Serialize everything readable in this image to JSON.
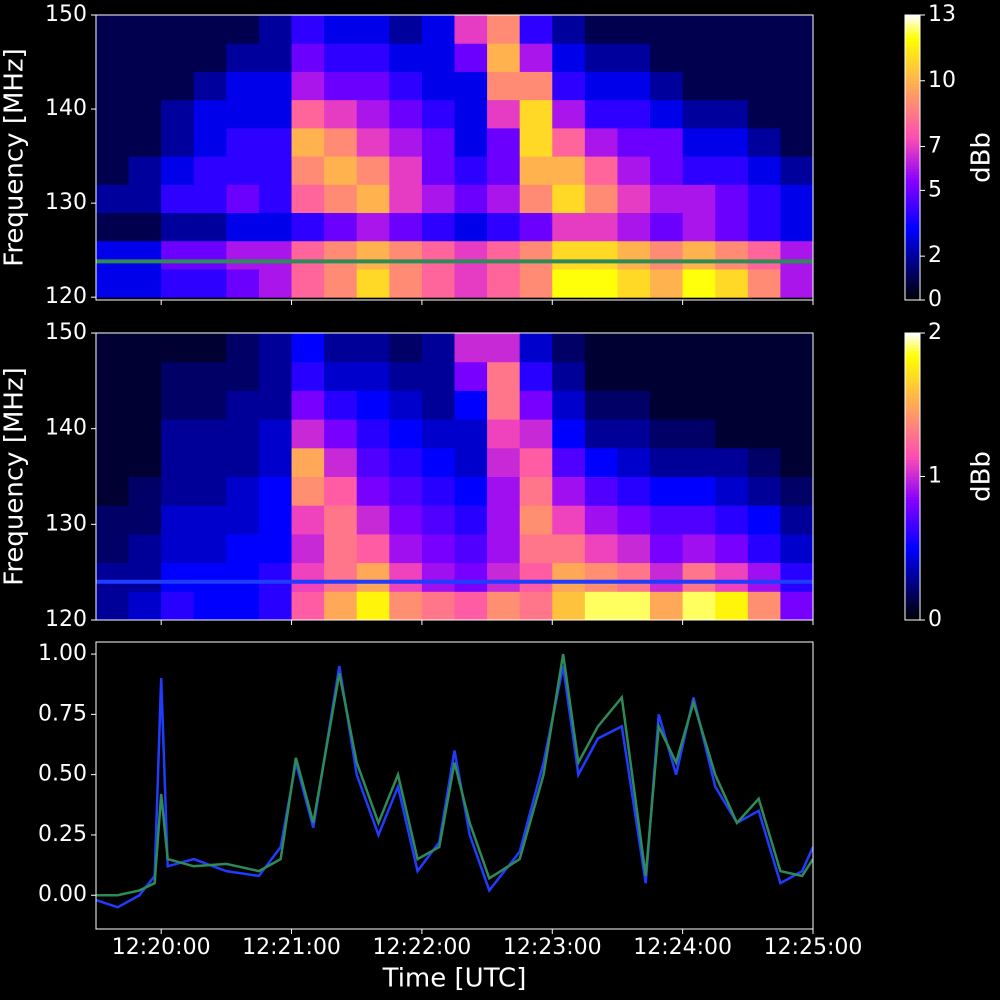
{
  "chart_data": [
    {
      "type": "heatmap",
      "ylabel": "Frequency [MHz]",
      "colorbar_label": "dBb",
      "colormap": "gnuplot2",
      "xlim": [
        "12:19:30",
        "12:25:00"
      ],
      "ylim": [
        119.7,
        150
      ],
      "yticks": [
        120,
        130,
        140,
        150
      ],
      "zlim": [
        0,
        13
      ],
      "zticks": [
        0,
        2,
        5,
        7,
        10,
        13
      ],
      "x": [
        "12:19:30",
        "12:19:45",
        "12:20:00",
        "12:20:15",
        "12:20:30",
        "12:20:45",
        "12:21:00",
        "12:21:15",
        "12:21:30",
        "12:21:45",
        "12:22:00",
        "12:22:15",
        "12:22:30",
        "12:22:45",
        "12:23:00",
        "12:23:15",
        "12:23:30",
        "12:23:45",
        "12:24:00",
        "12:24:15",
        "12:24:30",
        "12:24:45"
      ],
      "y": [
        120,
        123,
        126,
        129,
        132,
        135,
        138,
        141,
        144,
        147
      ],
      "z": [
        [
          3,
          3,
          4,
          4,
          5,
          6,
          8,
          9,
          11,
          9,
          8,
          7,
          8,
          9,
          12,
          12,
          11,
          10,
          12,
          11,
          9,
          6
        ],
        [
          3,
          3,
          5,
          5,
          6,
          6,
          8,
          9,
          10,
          9,
          8,
          7,
          8,
          9,
          11,
          11,
          10,
          9,
          10,
          9,
          8,
          6
        ],
        [
          1,
          1,
          2,
          2,
          3,
          3,
          4,
          5,
          6,
          5,
          4,
          3,
          4,
          5,
          7,
          7,
          6,
          5,
          6,
          5,
          4,
          3
        ],
        [
          2,
          2,
          4,
          4,
          5,
          4,
          8,
          9,
          10,
          7,
          6,
          5,
          6,
          9,
          11,
          9,
          7,
          6,
          6,
          5,
          4,
          3
        ],
        [
          1,
          2,
          3,
          4,
          4,
          4,
          9,
          10,
          9,
          7,
          5,
          4,
          5,
          10,
          10,
          8,
          6,
          5,
          4,
          4,
          3,
          2
        ],
        [
          1,
          1,
          2,
          3,
          4,
          4,
          10,
          9,
          7,
          6,
          5,
          3,
          5,
          11,
          8,
          6,
          5,
          5,
          3,
          3,
          2,
          1
        ],
        [
          1,
          1,
          2,
          3,
          3,
          3,
          8,
          7,
          6,
          5,
          4,
          3,
          7,
          11,
          6,
          4,
          4,
          3,
          2,
          2,
          1,
          1
        ],
        [
          1,
          1,
          1,
          2,
          3,
          3,
          6,
          5,
          5,
          4,
          3,
          3,
          9,
          9,
          4,
          3,
          3,
          2,
          1,
          1,
          1,
          1
        ],
        [
          1,
          1,
          1,
          1,
          2,
          2,
          5,
          4,
          4,
          3,
          3,
          5,
          10,
          6,
          3,
          2,
          2,
          1,
          1,
          1,
          1,
          1
        ],
        [
          1,
          1,
          1,
          1,
          1,
          2,
          4,
          3,
          3,
          2,
          3,
          7,
          9,
          4,
          2,
          1,
          1,
          1,
          1,
          1,
          1,
          1
        ]
      ],
      "hlines": [
        {
          "value": 123.8,
          "color": "#2e8b57"
        }
      ]
    },
    {
      "type": "heatmap",
      "ylabel": "Frequency [MHz]",
      "colorbar_label": "dBb",
      "colormap": "gnuplot2",
      "xlim": [
        "12:19:30",
        "12:25:00"
      ],
      "ylim": [
        120,
        150
      ],
      "yticks": [
        120,
        130,
        140,
        150
      ],
      "zlim": [
        0,
        2
      ],
      "zticks": [
        0,
        1,
        2
      ],
      "x": [
        "12:19:30",
        "12:19:45",
        "12:20:00",
        "12:20:15",
        "12:20:30",
        "12:20:45",
        "12:21:00",
        "12:21:15",
        "12:21:30",
        "12:21:45",
        "12:22:00",
        "12:22:15",
        "12:22:30",
        "12:22:45",
        "12:23:00",
        "12:23:15",
        "12:23:30",
        "12:23:45",
        "12:24:00",
        "12:24:15",
        "12:24:30",
        "12:24:45"
      ],
      "y": [
        120,
        123,
        126,
        129,
        132,
        135,
        138,
        141,
        144,
        147
      ],
      "z": [
        [
          0.3,
          0.4,
          0.6,
          0.5,
          0.5,
          0.6,
          1.2,
          1.5,
          1.8,
          1.4,
          1.3,
          1.2,
          1.4,
          1.3,
          1.6,
          1.9,
          1.9,
          1.5,
          1.9,
          1.8,
          1.4,
          0.8
        ],
        [
          0.3,
          0.3,
          0.5,
          0.5,
          0.5,
          0.6,
          1.1,
          1.3,
          1.5,
          1.1,
          0.9,
          0.8,
          1.0,
          1.2,
          1.5,
          1.4,
          1.3,
          1.0,
          1.3,
          1.1,
          0.9,
          0.6
        ],
        [
          0.2,
          0.3,
          0.4,
          0.4,
          0.5,
          0.5,
          1.0,
          1.3,
          1.2,
          0.9,
          0.8,
          0.7,
          0.9,
          1.3,
          1.3,
          1.1,
          1.0,
          0.8,
          0.9,
          0.8,
          0.6,
          0.4
        ],
        [
          0.2,
          0.2,
          0.4,
          0.4,
          0.4,
          0.5,
          1.1,
          1.3,
          1.0,
          0.8,
          0.7,
          0.6,
          0.9,
          1.4,
          1.1,
          0.9,
          0.8,
          0.7,
          0.7,
          0.6,
          0.5,
          0.3
        ],
        [
          0.1,
          0.2,
          0.3,
          0.3,
          0.4,
          0.5,
          1.4,
          1.2,
          0.8,
          0.7,
          0.6,
          0.5,
          0.9,
          1.3,
          0.9,
          0.7,
          0.6,
          0.5,
          0.5,
          0.4,
          0.3,
          0.2
        ],
        [
          0.1,
          0.1,
          0.3,
          0.3,
          0.3,
          0.4,
          1.5,
          1.0,
          0.7,
          0.6,
          0.5,
          0.4,
          1.0,
          1.2,
          0.7,
          0.5,
          0.4,
          0.3,
          0.3,
          0.3,
          0.2,
          0.1
        ],
        [
          0.1,
          0.1,
          0.3,
          0.3,
          0.3,
          0.4,
          1.0,
          0.8,
          0.6,
          0.5,
          0.4,
          0.4,
          1.1,
          1.0,
          0.5,
          0.3,
          0.3,
          0.2,
          0.2,
          0.1,
          0.1,
          0.1
        ],
        [
          0.1,
          0.1,
          0.2,
          0.2,
          0.3,
          0.3,
          0.8,
          0.6,
          0.5,
          0.4,
          0.3,
          0.5,
          1.3,
          0.8,
          0.4,
          0.2,
          0.2,
          0.1,
          0.1,
          0.1,
          0.1,
          0.1
        ],
        [
          0.1,
          0.1,
          0.2,
          0.2,
          0.2,
          0.3,
          0.6,
          0.4,
          0.4,
          0.3,
          0.3,
          0.8,
          1.3,
          0.6,
          0.3,
          0.1,
          0.1,
          0.1,
          0.1,
          0.1,
          0.1,
          0.1
        ],
        [
          0.1,
          0.1,
          0.1,
          0.1,
          0.2,
          0.3,
          0.5,
          0.3,
          0.3,
          0.2,
          0.3,
          1.0,
          1.0,
          0.4,
          0.2,
          0.1,
          0.1,
          0.1,
          0.1,
          0.1,
          0.1,
          0.1
        ]
      ],
      "hlines": [
        {
          "value": 124,
          "color": "#1f3cff"
        }
      ]
    },
    {
      "type": "line",
      "xlabel": "Time [UTC]",
      "xlim": [
        "12:19:30",
        "12:25:00"
      ],
      "xticks": [
        "12:20:00",
        "12:21:00",
        "12:22:00",
        "12:23:00",
        "12:24:00",
        "12:25:00"
      ],
      "ylim": [
        -0.14,
        1.05
      ],
      "yticks": [
        {
          "value": 0,
          "label": "0.00"
        },
        {
          "value": 0.25,
          "label": "0.25"
        },
        {
          "value": 0.5,
          "label": "0.50"
        },
        {
          "value": 0.75,
          "label": "0.75"
        },
        {
          "value": 1,
          "label": "1.00"
        }
      ],
      "x": [
        "12:19:30",
        "12:19:40",
        "12:19:50",
        "12:19:57",
        "12:20:00",
        "12:20:03",
        "12:20:15",
        "12:20:30",
        "12:20:45",
        "12:20:55",
        "12:21:02",
        "12:21:10",
        "12:21:22",
        "12:21:30",
        "12:21:40",
        "12:21:49",
        "12:21:58",
        "12:22:08",
        "12:22:15",
        "12:22:22",
        "12:22:31",
        "12:22:45",
        "12:22:56",
        "12:23:05",
        "12:23:12",
        "12:23:21",
        "12:23:32",
        "12:23:43",
        "12:23:49",
        "12:23:57",
        "12:24:05",
        "12:24:15",
        "12:24:25",
        "12:24:35",
        "12:24:45",
        "12:24:55",
        "12:25:00"
      ],
      "series": [
        {
          "color": "#1f3cff",
          "values": [
            -0.02,
            -0.05,
            0.0,
            0.08,
            0.9,
            0.12,
            0.15,
            0.1,
            0.08,
            0.2,
            0.55,
            0.28,
            0.95,
            0.5,
            0.25,
            0.45,
            0.1,
            0.22,
            0.6,
            0.25,
            0.02,
            0.18,
            0.55,
            0.95,
            0.5,
            0.65,
            0.7,
            0.05,
            0.75,
            0.5,
            0.82,
            0.45,
            0.3,
            0.35,
            0.05,
            0.1,
            0.2
          ]
        },
        {
          "color": "#2e8b57",
          "values": [
            0.0,
            0.0,
            0.02,
            0.05,
            0.42,
            0.15,
            0.12,
            0.13,
            0.1,
            0.15,
            0.57,
            0.3,
            0.92,
            0.55,
            0.3,
            0.5,
            0.15,
            0.2,
            0.55,
            0.3,
            0.07,
            0.15,
            0.5,
            1.0,
            0.55,
            0.7,
            0.82,
            0.08,
            0.7,
            0.55,
            0.8,
            0.5,
            0.3,
            0.4,
            0.1,
            0.08,
            0.15
          ]
        }
      ]
    }
  ]
}
